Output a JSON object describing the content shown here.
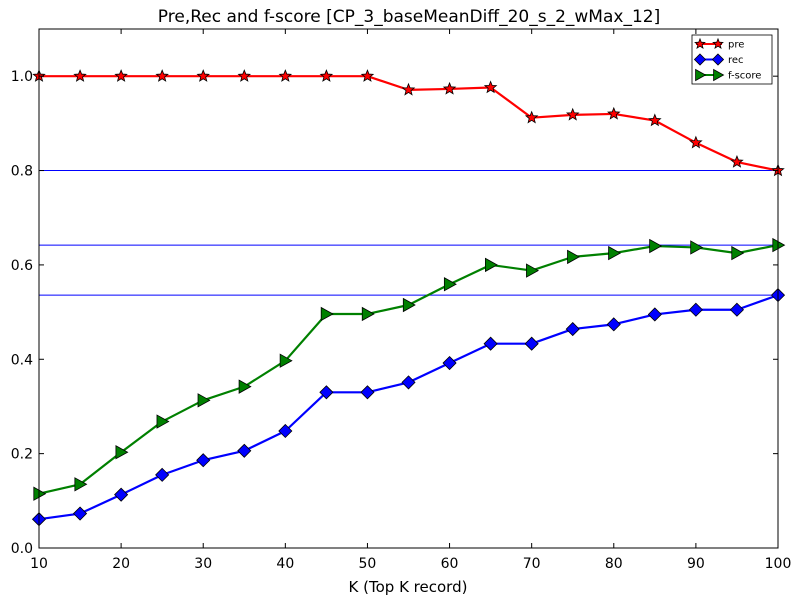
{
  "chart_data": {
    "type": "line",
    "title": "Pre,Rec and f-score [CP_3_baseMeanDiff_20_s_2_wMax_12]",
    "xlabel": "K (Top K record)",
    "ylabel": "",
    "xlim": [
      10,
      100
    ],
    "ylim": [
      0,
      1.1
    ],
    "x_ticks": [
      10,
      20,
      30,
      40,
      50,
      60,
      70,
      80,
      90,
      100
    ],
    "y_ticks": [
      0.0,
      0.2,
      0.4,
      0.6,
      0.8,
      1.0
    ],
    "x_tick_labels": [
      "10",
      "20",
      "30",
      "40",
      "50",
      "60",
      "70",
      "80",
      "90",
      "100"
    ],
    "y_tick_labels": [
      "0.0",
      "0.2",
      "0.4",
      "0.6",
      "0.8",
      "1.0"
    ],
    "grid": false,
    "legend_position": "top-right",
    "x": [
      10,
      15,
      20,
      25,
      30,
      35,
      40,
      45,
      50,
      55,
      60,
      65,
      70,
      75,
      80,
      85,
      90,
      95,
      100
    ],
    "series": [
      {
        "name": "pre",
        "color": "#ff0000",
        "marker": "star",
        "values": [
          1.0,
          1.0,
          1.0,
          1.0,
          1.0,
          1.0,
          1.0,
          1.0,
          1.0,
          0.971,
          0.973,
          0.976,
          0.912,
          0.918,
          0.92,
          0.906,
          0.859,
          0.818,
          0.8
        ]
      },
      {
        "name": "rec",
        "color": "#0000ff",
        "marker": "diamond",
        "values": [
          0.061,
          0.073,
          0.113,
          0.155,
          0.186,
          0.206,
          0.248,
          0.33,
          0.33,
          0.351,
          0.392,
          0.433,
          0.433,
          0.464,
          0.474,
          0.495,
          0.505,
          0.505,
          0.536
        ]
      },
      {
        "name": "f-score",
        "color": "#008000",
        "marker": "triangle-right",
        "values": [
          0.115,
          0.135,
          0.203,
          0.268,
          0.313,
          0.342,
          0.397,
          0.496,
          0.496,
          0.515,
          0.559,
          0.6,
          0.588,
          0.617,
          0.625,
          0.64,
          0.637,
          0.625,
          0.642
        ]
      }
    ],
    "reference_lines": [
      {
        "y": 0.8,
        "color": "#0000ff"
      },
      {
        "y": 0.642,
        "color": "#0000ff"
      },
      {
        "y": 0.536,
        "color": "#0000ff"
      }
    ]
  }
}
